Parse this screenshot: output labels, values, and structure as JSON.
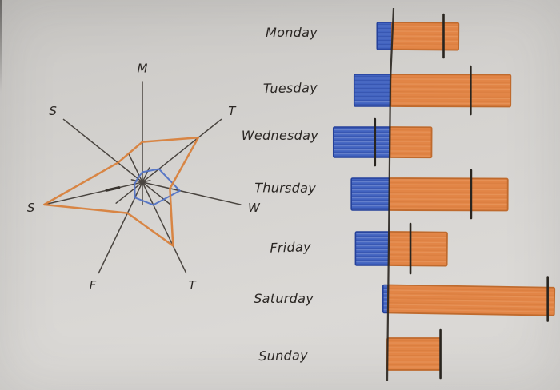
{
  "colors": {
    "paper": "#d5d3d0",
    "ink": "#2b2724",
    "axis_line": "#4a4540",
    "blue_fill": "#4263c0",
    "blue_outline": "#24409a",
    "orange_fill": "#e28546",
    "orange_outline": "#bf6a2d",
    "radar_blue": "#5273c5",
    "radar_orange": "#d8813c",
    "tick": "#29251f"
  },
  "chart_data": [
    {
      "type": "radar",
      "title": "",
      "axes": [
        "M",
        "T",
        "W",
        "T",
        "F",
        "S",
        "S"
      ],
      "start_angle_deg": 90,
      "direction": "clockwise",
      "scale_max": 10,
      "tick_labels": "none",
      "grid": false,
      "legend": false,
      "series": [
        {
          "name": "blue",
          "color": "#5273c5",
          "values": [
            1.0,
            2.1,
            3.8,
            2.5,
            1.7,
            0.8,
            0.6
          ]
        },
        {
          "name": "orange",
          "color": "#d8813c",
          "values": [
            4.0,
            7.1,
            2.8,
            7.0,
            3.4,
            10.0,
            3.1
          ]
        }
      ]
    },
    {
      "type": "bar",
      "orientation": "horizontal",
      "diverging": true,
      "title": "",
      "categories": [
        "Monday",
        "Tuesday",
        "Wednesday",
        "Thursday",
        "Friday",
        "Saturday",
        "Sunday"
      ],
      "series": [
        {
          "name": "blue",
          "direction": "left-of-baseline",
          "color": "#4263c0",
          "values": [
            0.9,
            2.2,
            3.4,
            2.3,
            2.0,
            0.3,
            0
          ]
        },
        {
          "name": "orange",
          "direction": "right-of-baseline",
          "color": "#e28546",
          "values": [
            4.0,
            7.2,
            2.5,
            7.1,
            3.5,
            10.0,
            3.2
          ]
        }
      ],
      "markers": {
        "name": "black tick marks",
        "values": [
          3.1,
          4.8,
          -0.9,
          4.9,
          1.3,
          9.6,
          3.2
        ]
      },
      "value_axis": {
        "baseline": 0,
        "range": [
          -4,
          10.5
        ],
        "tick_labels": "none"
      },
      "grid": false,
      "legend": false,
      "scale_note": "hand-drawn, no numeric scale; values normalized so longest bar = 10"
    }
  ]
}
